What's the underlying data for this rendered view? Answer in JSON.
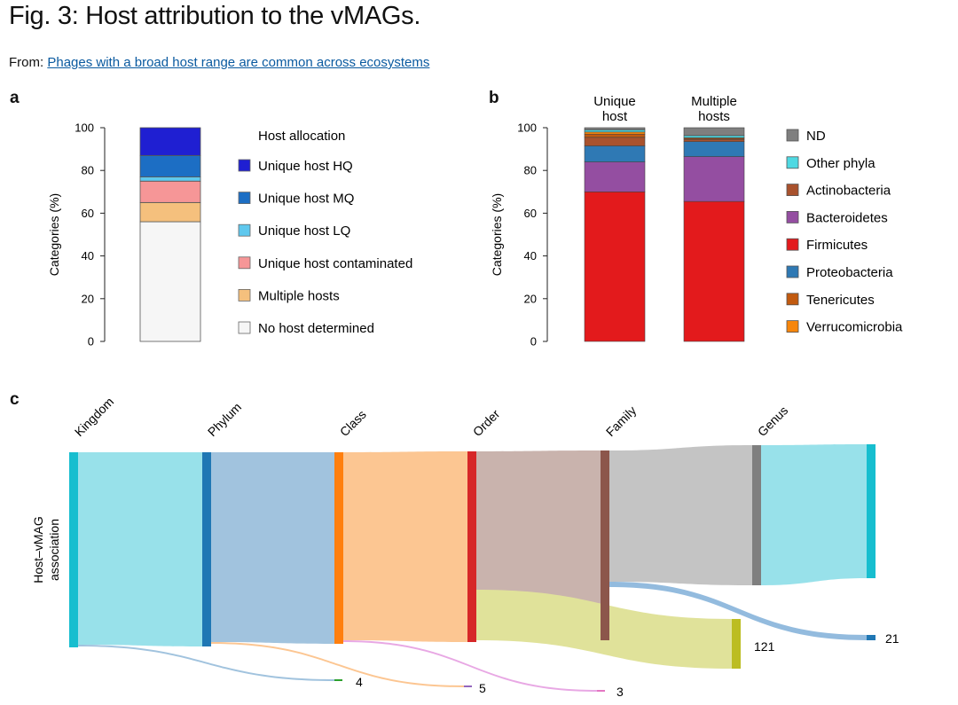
{
  "header": {
    "title": "Fig. 3: Host attribution to the vMAGs.",
    "source_prefix": "From:",
    "source_link": "Phages with a broad host range are common across ecosystems"
  },
  "chart_data": [
    {
      "panel": "a",
      "type": "bar",
      "stacked": true,
      "categories": [
        ""
      ],
      "ylabel": "Categories (%)",
      "ylim": [
        0,
        100
      ],
      "yticks": [
        "0",
        "20",
        "40",
        "60",
        "80",
        "100"
      ],
      "legend_title": "Host allocation",
      "series": [
        {
          "name": "No host determined",
          "color": "#f6f6f6",
          "values": [
            56
          ]
        },
        {
          "name": "Multiple hosts",
          "color": "#f5c07d",
          "values": [
            9
          ]
        },
        {
          "name": "Unique host contaminated",
          "color": "#f69697",
          "values": [
            10
          ]
        },
        {
          "name": "Unique host LQ",
          "color": "#5fc8ee",
          "values": [
            2
          ]
        },
        {
          "name": "Unique host MQ",
          "color": "#1c6ec4",
          "values": [
            10
          ]
        },
        {
          "name": "Unique host HQ",
          "color": "#1f1fd2",
          "values": [
            13
          ]
        }
      ],
      "legend_order": [
        "Unique host HQ",
        "Unique host MQ",
        "Unique host LQ",
        "Unique host contaminated",
        "Multiple hosts",
        "No host determined"
      ]
    },
    {
      "panel": "b",
      "type": "bar",
      "stacked": true,
      "categories": [
        "Unique host",
        "Multiple hosts"
      ],
      "ylabel": "Categories (%)",
      "ylim": [
        0,
        100
      ],
      "yticks": [
        "0",
        "20",
        "40",
        "60",
        "80",
        "100"
      ],
      "series": [
        {
          "name": "Firmicutes",
          "color": "#e31a1c",
          "values": [
            70,
            65.5
          ]
        },
        {
          "name": "Bacteroidetes",
          "color": "#944ea1",
          "values": [
            14,
            21
          ]
        },
        {
          "name": "Proteobacteria",
          "color": "#2f79b4",
          "values": [
            7.5,
            7
          ]
        },
        {
          "name": "Actinobacteria",
          "color": "#a9522d",
          "values": [
            4,
            1
          ]
        },
        {
          "name": "Tenericutes",
          "color": "#c25a0f",
          "values": [
            1.5,
            0.5
          ]
        },
        {
          "name": "Verrucomicrobia",
          "color": "#f7860b",
          "values": [
            1,
            0.3
          ]
        },
        {
          "name": "Other phyla",
          "color": "#4fd9e2",
          "values": [
            1,
            1
          ]
        },
        {
          "name": "ND",
          "color": "#7f7f7f",
          "values": [
            1,
            3.7
          ]
        }
      ],
      "legend_order": [
        "ND",
        "Other phyla",
        "Actinobacteria",
        "Bacteroidetes",
        "Firmicutes",
        "Proteobacteria",
        "Tenericutes",
        "Verrucomicrobia"
      ]
    },
    {
      "panel": "c",
      "type": "sankey",
      "ylabel": "Host–vMAG association",
      "levels": [
        "Kingdom",
        "Phylum",
        "Class",
        "Order",
        "Family",
        "Genus"
      ],
      "level_colors": [
        "#17becf",
        "#1f77b4",
        "#ff7f0e",
        "#d62728",
        "#8c564b",
        "#7f7f7f"
      ],
      "flow_colors": [
        "#98e1ea",
        "#a1c3de",
        "#fcc692",
        "#c9b3ad",
        "#c4c4c4",
        "#98e1ea"
      ],
      "dropout_colors": [
        "#a1c3de",
        "#fcc692",
        "#e8a8e4",
        "#e0e29a",
        "#93bbde"
      ],
      "dropout_node_colors": [
        "#2ca02c",
        "#9467bd",
        "#e377c2",
        "#bcbd22",
        "#1f77b4"
      ],
      "dropout_labels": [
        "4",
        "5",
        "3",
        "121",
        "21"
      ]
    }
  ]
}
